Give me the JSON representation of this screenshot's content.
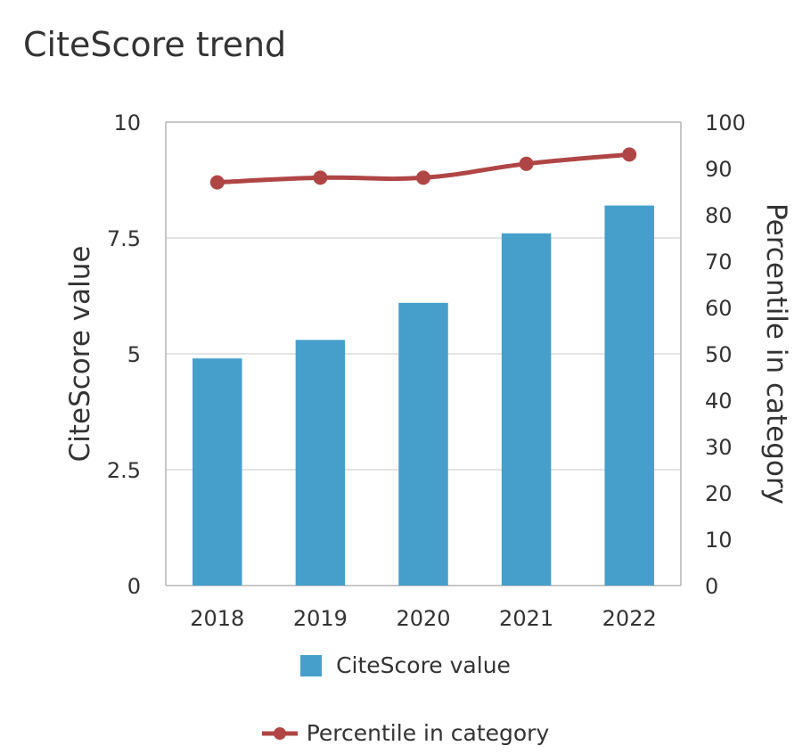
{
  "chart_data": {
    "type": "bar",
    "title": "CiteScore trend",
    "categories": [
      "2018",
      "2019",
      "2020",
      "2021",
      "2022"
    ],
    "series": [
      {
        "name": "CiteScore value",
        "type": "bar",
        "axis": "left",
        "values": [
          4.9,
          5.3,
          6.1,
          7.6,
          8.2
        ],
        "color": "#469fcb"
      },
      {
        "name": "Percentile in category",
        "type": "line",
        "axis": "right",
        "values": [
          87,
          88,
          88,
          91,
          93
        ],
        "color": "#b04545"
      }
    ],
    "ylabel": "CiteScore value",
    "ylim": [
      0,
      10
    ],
    "yticks": [
      "0",
      "2.5",
      "5",
      "7.5",
      "10"
    ],
    "y2label": "Percentile in category",
    "y2lim": [
      0,
      100
    ],
    "y2ticks": [
      "0",
      "10",
      "20",
      "30",
      "40",
      "50",
      "60",
      "70",
      "80",
      "90",
      "100"
    ],
    "grid": true,
    "legend": "bottom"
  }
}
